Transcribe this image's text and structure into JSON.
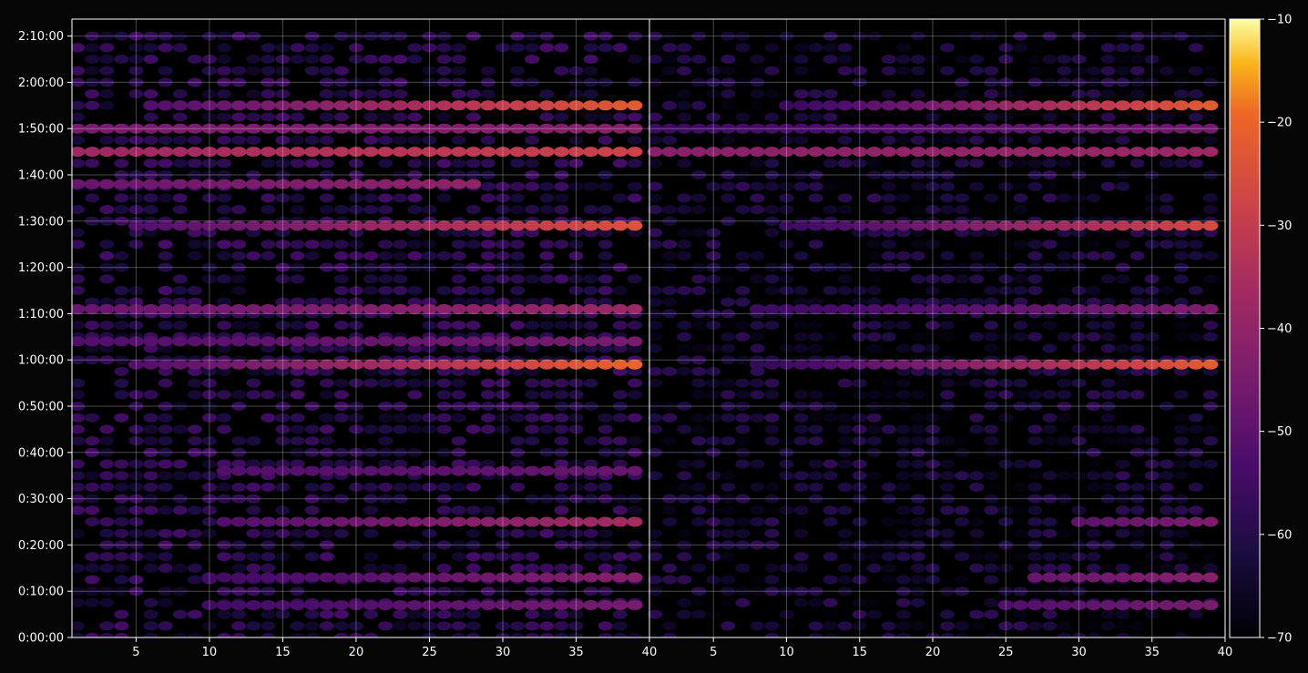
{
  "chart_data": {
    "type": "heatmap",
    "title": "",
    "xlabel": "",
    "ylabel": "",
    "panels": [
      {
        "name": "",
        "xlim": [
          1,
          40
        ]
      },
      {
        "name": "",
        "xlim": [
          1,
          40
        ]
      }
    ],
    "x_ticks": [
      "5",
      "10",
      "15",
      "20",
      "25",
      "30",
      "35",
      "40"
    ],
    "x_tick_values": [
      5,
      10,
      15,
      20,
      25,
      30,
      35,
      40
    ],
    "y_ticks": [
      "0:00:00",
      "0:10:00",
      "0:20:00",
      "0:30:00",
      "0:40:00",
      "0:50:00",
      "1:00:00",
      "1:10:00",
      "1:20:00",
      "1:30:00",
      "1:40:00",
      "1:50:00",
      "2:00:00",
      "2:10:00"
    ],
    "ylim_seconds": [
      0,
      7950
    ],
    "grid": true,
    "colorbar": {
      "colormap": "inferno",
      "range": [
        -70,
        -10
      ],
      "ticks": [
        "−70",
        "−60",
        "−50",
        "−40",
        "−30",
        "−20",
        "−10"
      ],
      "tick_values": [
        -70,
        -60,
        -50,
        -40,
        -30,
        -20,
        -10
      ]
    },
    "bands": [
      {
        "time": "1:55:00",
        "panel": 1,
        "x_start": 6,
        "x_end": 39,
        "level_start": -52,
        "level_end": -22
      },
      {
        "time": "1:55:00",
        "panel": 2,
        "x_start": 10,
        "x_end": 39,
        "level_start": -57,
        "level_end": -22
      },
      {
        "time": "1:50:00",
        "panel": 1,
        "x_start": 1,
        "x_end": 39,
        "level_start": -45,
        "level_end": -42
      },
      {
        "time": "1:50:00",
        "panel": 2,
        "x_start": 1,
        "x_end": 39,
        "level_start": -56,
        "level_end": -46
      },
      {
        "time": "1:45:00",
        "panel": 1,
        "x_start": 1,
        "x_end": 39,
        "level_start": -38,
        "level_end": -28
      },
      {
        "time": "1:45:00",
        "panel": 2,
        "x_start": 1,
        "x_end": 39,
        "level_start": -42,
        "level_end": -38
      },
      {
        "time": "1:38:00",
        "panel": 1,
        "x_start": 1,
        "x_end": 28,
        "level_start": -48,
        "level_end": -40
      },
      {
        "time": "1:29:00",
        "panel": 1,
        "x_start": 5,
        "x_end": 39,
        "level_start": -52,
        "level_end": -24
      },
      {
        "time": "1:29:00",
        "panel": 2,
        "x_start": 10,
        "x_end": 39,
        "level_start": -56,
        "level_end": -26
      },
      {
        "time": "1:11:00",
        "panel": 1,
        "x_start": 1,
        "x_end": 39,
        "level_start": -48,
        "level_end": -38
      },
      {
        "time": "1:11:00",
        "panel": 2,
        "x_start": 8,
        "x_end": 39,
        "level_start": -56,
        "level_end": -44
      },
      {
        "time": "1:04:00",
        "panel": 1,
        "x_start": 1,
        "x_end": 39,
        "level_start": -52,
        "level_end": -45
      },
      {
        "time": "0:59:00",
        "panel": 1,
        "x_start": 5,
        "x_end": 39,
        "level_start": -52,
        "level_end": -20
      },
      {
        "time": "0:59:00",
        "panel": 2,
        "x_start": 8,
        "x_end": 39,
        "level_start": -58,
        "level_end": -22
      },
      {
        "time": "0:36:00",
        "panel": 1,
        "x_start": 11,
        "x_end": 39,
        "level_start": -52,
        "level_end": -48
      },
      {
        "time": "0:25:00",
        "panel": 1,
        "x_start": 11,
        "x_end": 39,
        "level_start": -52,
        "level_end": -36
      },
      {
        "time": "0:25:00",
        "panel": 2,
        "x_start": 30,
        "x_end": 39,
        "level_start": -50,
        "level_end": -44
      },
      {
        "time": "0:13:00",
        "panel": 1,
        "x_start": 10,
        "x_end": 39,
        "level_start": -55,
        "level_end": -42
      },
      {
        "time": "0:13:00",
        "panel": 2,
        "x_start": 27,
        "x_end": 39,
        "level_start": -48,
        "level_end": -42
      },
      {
        "time": "0:07:00",
        "panel": 1,
        "x_start": 10,
        "x_end": 39,
        "level_start": -55,
        "level_end": -45
      },
      {
        "time": "0:07:00",
        "panel": 2,
        "x_start": 25,
        "x_end": 39,
        "level_start": -52,
        "level_end": -45
      }
    ]
  }
}
